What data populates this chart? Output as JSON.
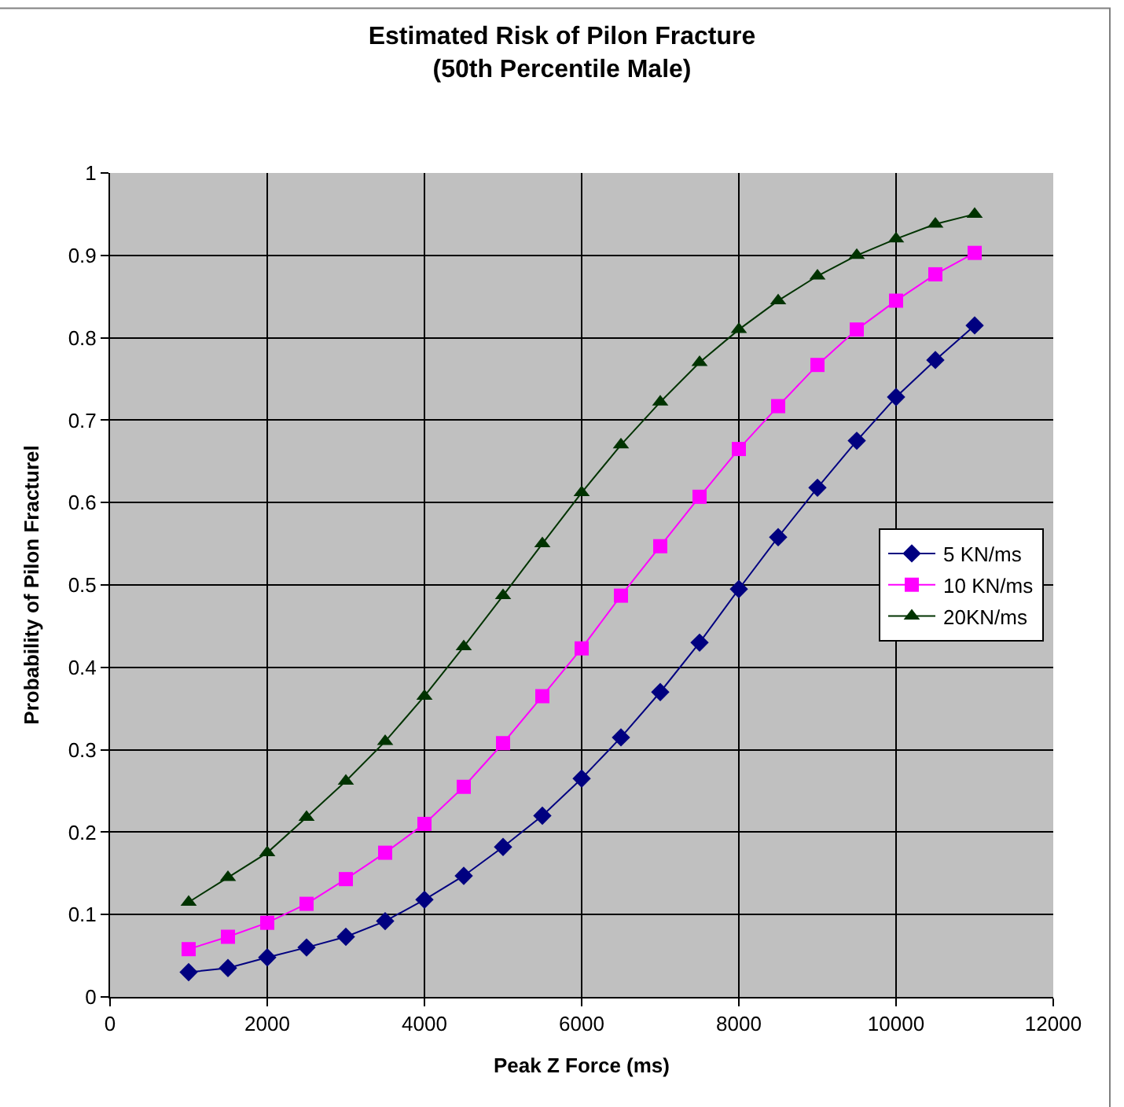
{
  "chart_data": {
    "type": "line",
    "title": "Estimated Risk of Pilon Fracture\n(50th Percentile Male)",
    "xlabel": "Peak Z Force (ms)",
    "ylabel": "Probability of Pilon Fracturel",
    "x": [
      1000,
      1500,
      2000,
      2500,
      3000,
      3500,
      4000,
      4500,
      5000,
      5500,
      6000,
      6500,
      7000,
      7500,
      8000,
      8500,
      9000,
      9500,
      10000,
      10500,
      11000
    ],
    "series": [
      {
        "name": "5 KN/ms",
        "color": "#000080",
        "marker": "diamond",
        "values": [
          0.03,
          0.035,
          0.048,
          0.06,
          0.073,
          0.092,
          0.118,
          0.147,
          0.182,
          0.22,
          0.265,
          0.315,
          0.37,
          0.43,
          0.495,
          0.558,
          0.618,
          0.675,
          0.728,
          0.773,
          0.815
        ]
      },
      {
        "name": "10 KN/ms",
        "color": "#ff00ff",
        "marker": "square",
        "values": [
          0.058,
          0.073,
          0.09,
          0.113,
          0.143,
          0.175,
          0.21,
          0.255,
          0.308,
          0.365,
          0.423,
          0.487,
          0.547,
          0.607,
          0.665,
          0.717,
          0.767,
          0.81,
          0.845,
          0.877,
          0.903
        ]
      },
      {
        "name": "20KN/ms",
        "color": "#003300",
        "marker": "triangle",
        "values": [
          0.115,
          0.145,
          0.175,
          0.218,
          0.262,
          0.31,
          0.365,
          0.425,
          0.487,
          0.55,
          0.612,
          0.67,
          0.722,
          0.77,
          0.81,
          0.845,
          0.875,
          0.9,
          0.92,
          0.938,
          0.95
        ]
      }
    ],
    "xlim": [
      0,
      12000
    ],
    "xticks": [
      0,
      2000,
      4000,
      6000,
      8000,
      10000,
      12000
    ],
    "ylim": [
      0,
      1
    ],
    "yticks": [
      0,
      0.1,
      0.2,
      0.3,
      0.4,
      0.5,
      0.6,
      0.7,
      0.8,
      0.9,
      1
    ],
    "grid": true,
    "legend": "right",
    "line_style": "solid"
  }
}
